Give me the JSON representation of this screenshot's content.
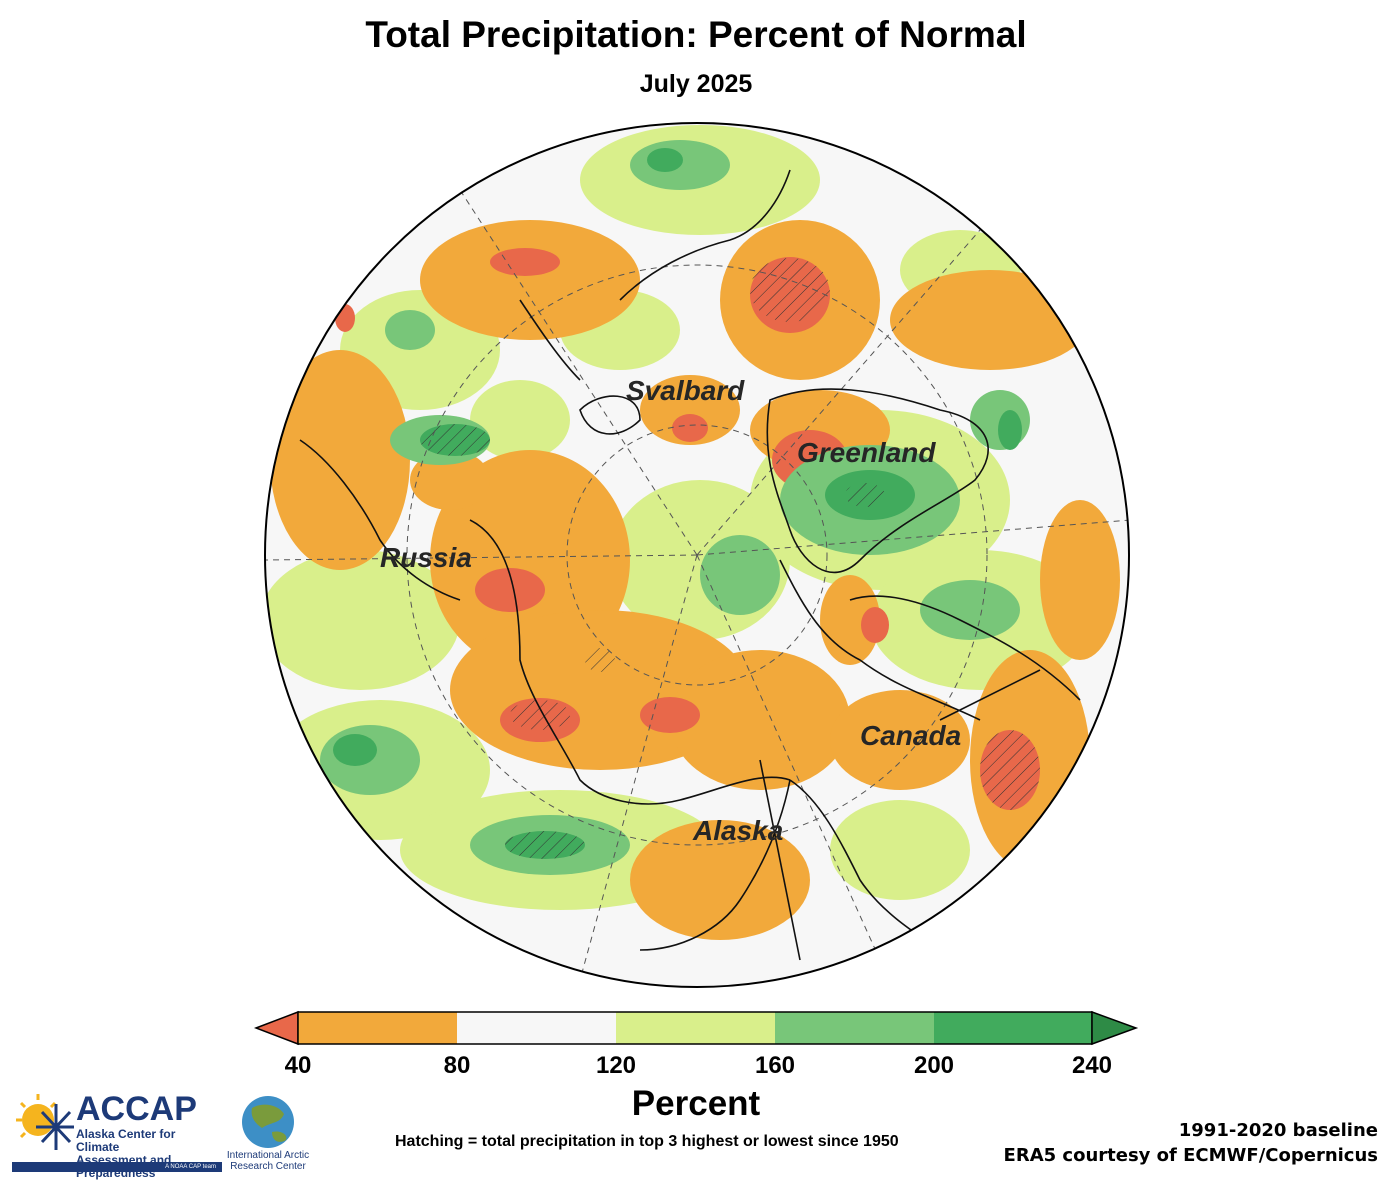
{
  "title": "Total Precipitation: Percent of Normal",
  "subtitle": "July 2025",
  "map": {
    "region_labels": [
      "Svalbard",
      "Greenland",
      "Russia",
      "Canada",
      "Alaska"
    ]
  },
  "colorbar": {
    "label": "Percent",
    "ticks": [
      "40",
      "80",
      "120",
      "160",
      "200",
      "240"
    ],
    "colors": {
      "below": "#e8684a",
      "c40_80": "#f2a93b",
      "c80_120": "#f7f7f7",
      "c120_160": "#d9ef8b",
      "c160_200": "#78c679",
      "c200_240": "#41ab5d",
      "above": "#2e8b46"
    }
  },
  "footnote": "Hatching = total precipitation in top 3 highest or lowest since 1950",
  "baseline": "1991-2020 baseline",
  "source": "ERA5 courtesy of ECMWF/Copernicus",
  "logos": {
    "accap_name": "ACCAP",
    "accap_subtitle_1": "Alaska Center for Climate",
    "accap_subtitle_2": "Assessment and Preparedness",
    "accap_tag": "A NOAA CAP team",
    "iarc_1": "International Arctic",
    "iarc_2": "Research Center"
  }
}
